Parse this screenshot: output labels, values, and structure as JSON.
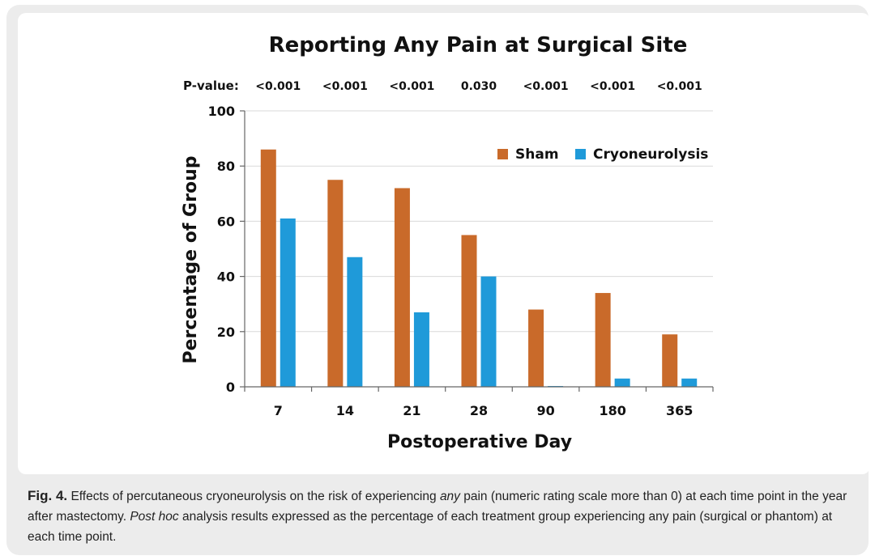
{
  "chart_data": {
    "type": "bar",
    "title": "Reporting Any Pain at Surgical Site",
    "xlabel": "Postoperative Day",
    "ylabel": "Percentage of Group",
    "ylim": [
      0,
      100
    ],
    "yticks": [
      0,
      20,
      40,
      60,
      80,
      100
    ],
    "categories": [
      "7",
      "14",
      "21",
      "28",
      "90",
      "180",
      "365"
    ],
    "series": [
      {
        "name": "Sham",
        "color": "#c96a2a",
        "values": [
          86,
          75,
          72,
          55,
          28,
          34,
          19
        ]
      },
      {
        "name": "Cryoneurolysis",
        "color": "#1f9ad9",
        "values": [
          61,
          47,
          27,
          40,
          0,
          3,
          3
        ]
      }
    ],
    "pvalue_label": "P-value:",
    "pvalues": [
      "<0.001",
      "<0.001",
      "<0.001",
      "0.030",
      "<0.001",
      "<0.001",
      "<0.001"
    ],
    "legend_position": "top-right",
    "grid": true
  },
  "caption": {
    "fig_label": "Fig. 4.",
    "text_1": "Effects of percutaneous cryoneurolysis on the risk of experiencing",
    "text_any": "any",
    "text_2": "pain (numeric rating scale more than 0) at each time point in the year after mastectomy.",
    "text_posthoc": "Post hoc",
    "text_3": "analysis results expressed as the percentage of each treatment group experiencing any pain (surgical or phantom) at each time point."
  }
}
